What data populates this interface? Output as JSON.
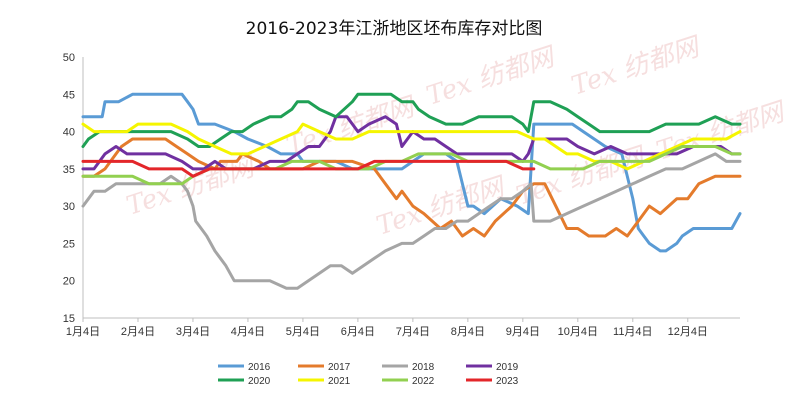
{
  "chart_data": {
    "type": "line",
    "title": "2016-2023年江浙地区坯布库存对比图",
    "categories": [
      "1月4日",
      "2月4日",
      "3月4日",
      "4月4日",
      "5月4日",
      "6月4日",
      "7月4日",
      "8月4日",
      "9月4日",
      "10月4日",
      "11月4日",
      "12月4日"
    ],
    "ylim": [
      15,
      50
    ],
    "yticks": [
      15,
      20,
      25,
      30,
      35,
      40,
      45,
      50
    ],
    "grid": false,
    "legend_position": "bottom",
    "watermark": "Tex 纺都网",
    "x_domain": [
      1,
      12.95
    ],
    "series": [
      {
        "name": "2016",
        "color": "#5a9bd5",
        "x": [
          1,
          1.1,
          1.35,
          1.4,
          1.65,
          1.9,
          2.1,
          2.4,
          2.8,
          2.9,
          3.0,
          3.1,
          3.4,
          3.75,
          4.0,
          4.35,
          4.6,
          4.9,
          5.0,
          5.3,
          5.6,
          5.9,
          6.2,
          6.6,
          6.8,
          7.0,
          7.2,
          7.4,
          7.6,
          7.8,
          7.9,
          8.0,
          8.1,
          8.3,
          8.6,
          8.9,
          9.1,
          9.2,
          9.3,
          9.6,
          9.9,
          10.1,
          10.5,
          10.8,
          10.9,
          11.0,
          11.1,
          11.2,
          11.3,
          11.5,
          11.6,
          11.8,
          11.9,
          12.1,
          12.3,
          12.6,
          12.8,
          12.95
        ],
        "y": [
          42,
          42,
          42,
          44,
          44,
          45,
          45,
          45,
          45,
          44,
          43,
          41,
          41,
          40,
          39,
          38,
          37,
          37,
          36,
          36,
          36,
          35,
          35,
          35,
          35,
          36,
          37,
          37,
          37,
          36,
          33,
          30,
          30,
          29,
          31,
          30,
          29,
          41,
          41,
          41,
          41,
          40,
          38,
          37,
          34,
          31,
          27,
          26,
          25,
          24,
          24,
          25,
          26,
          27,
          27,
          27,
          27,
          29
        ]
      },
      {
        "name": "2017",
        "color": "#e47b2c",
        "x": [
          1,
          1.2,
          1.4,
          1.6,
          1.7,
          1.9,
          2.2,
          2.5,
          2.7,
          2.9,
          3.1,
          3.4,
          3.5,
          3.8,
          3.9,
          4.2,
          4.4,
          4.7,
          5.0,
          5.3,
          5.6,
          5.9,
          6.3,
          6.5,
          6.7,
          6.8,
          7.0,
          7.2,
          7.5,
          7.7,
          7.9,
          8.1,
          8.3,
          8.5,
          8.8,
          9.0,
          9.2,
          9.4,
          9.6,
          9.8,
          10.0,
          10.2,
          10.5,
          10.7,
          10.9,
          11.1,
          11.3,
          11.5,
          11.8,
          12.0,
          12.2,
          12.5,
          12.7,
          12.95
        ],
        "y": [
          34,
          34,
          35,
          37,
          38,
          39,
          39,
          39,
          38,
          37,
          36,
          35,
          36,
          36,
          37,
          36,
          35,
          35,
          35,
          36,
          36,
          36,
          35,
          33,
          31,
          32,
          30,
          29,
          27,
          28,
          26,
          27,
          26,
          28,
          30,
          32,
          33,
          33,
          30,
          27,
          27,
          26,
          26,
          27,
          26,
          28,
          30,
          29,
          31,
          31,
          33,
          34,
          34,
          34
        ]
      },
      {
        "name": "2018",
        "color": "#a5a5a5",
        "x": [
          1,
          1.1,
          1.2,
          1.4,
          1.6,
          1.8,
          2.0,
          2.2,
          2.4,
          2.6,
          2.8,
          2.9,
          3.0,
          3.05,
          3.15,
          3.25,
          3.4,
          3.5,
          3.6,
          3.75,
          3.9,
          4.1,
          4.4,
          4.7,
          4.9,
          5.1,
          5.3,
          5.5,
          5.7,
          5.9,
          6.1,
          6.3,
          6.5,
          6.8,
          7.0,
          7.2,
          7.4,
          7.6,
          7.8,
          8.0,
          8.2,
          8.4,
          8.6,
          8.8,
          9.0,
          9.15,
          9.2,
          9.5,
          9.8,
          10.1,
          10.4,
          10.7,
          11.0,
          11.3,
          11.6,
          11.9,
          12.2,
          12.5,
          12.7,
          12.95
        ],
        "y": [
          30,
          31,
          32,
          32,
          33,
          33,
          33,
          33,
          33,
          34,
          33,
          32,
          30,
          28,
          27,
          26,
          24,
          23,
          22,
          20,
          20,
          20,
          20,
          19,
          19,
          20,
          21,
          22,
          22,
          21,
          22,
          23,
          24,
          25,
          25,
          26,
          27,
          27,
          28,
          28,
          29,
          30,
          31,
          31,
          32,
          33,
          28,
          28,
          29,
          30,
          31,
          32,
          33,
          34,
          35,
          35,
          36,
          37,
          36,
          36
        ]
      },
      {
        "name": "2019",
        "color": "#7030a0",
        "x": [
          1,
          1.2,
          1.4,
          1.6,
          1.8,
          2.0,
          2.2,
          2.5,
          2.8,
          3.0,
          3.2,
          3.4,
          3.6,
          3.9,
          4.1,
          4.4,
          4.7,
          4.9,
          5.1,
          5.3,
          5.5,
          5.6,
          5.8,
          5.9,
          6.0,
          6.2,
          6.5,
          6.7,
          6.8,
          7.0,
          7.2,
          7.4,
          7.6,
          7.8,
          8.0,
          8.2,
          8.5,
          8.8,
          9.0,
          9.1,
          9.2,
          9.4,
          9.6,
          9.8,
          10.0,
          10.3,
          10.6,
          10.9,
          11.1,
          11.3,
          11.5,
          11.8,
          12.1,
          12.4,
          12.6,
          12.8,
          12.95
        ],
        "y": [
          35,
          35,
          37,
          38,
          37,
          37,
          37,
          37,
          36,
          35,
          35,
          36,
          35,
          35,
          35,
          36,
          36,
          37,
          38,
          38,
          40,
          42,
          42,
          41,
          40,
          41,
          42,
          41,
          38,
          40,
          39,
          39,
          38,
          37,
          37,
          37,
          37,
          37,
          36,
          37,
          39,
          39,
          39,
          39,
          38,
          37,
          38,
          37,
          37,
          37,
          37,
          37,
          38,
          38,
          38,
          37,
          37
        ]
      },
      {
        "name": "2020",
        "color": "#1fa055",
        "x": [
          1,
          1.1,
          1.3,
          1.5,
          1.8,
          2.0,
          2.3,
          2.6,
          2.9,
          3.1,
          3.3,
          3.5,
          3.7,
          3.9,
          4.1,
          4.4,
          4.6,
          4.8,
          4.9,
          5.1,
          5.3,
          5.6,
          5.9,
          6.0,
          6.2,
          6.4,
          6.6,
          6.8,
          7.0,
          7.1,
          7.3,
          7.6,
          7.9,
          8.2,
          8.5,
          8.8,
          9.0,
          9.1,
          9.2,
          9.5,
          9.8,
          10.0,
          10.2,
          10.4,
          10.6,
          10.8,
          11.0,
          11.3,
          11.6,
          11.9,
          12.2,
          12.5,
          12.8,
          12.95
        ],
        "y": [
          38,
          39,
          40,
          40,
          40,
          40,
          40,
          40,
          39,
          38,
          38,
          39,
          40,
          40,
          41,
          42,
          42,
          43,
          44,
          44,
          43,
          42,
          44,
          45,
          45,
          45,
          45,
          44,
          44,
          43,
          42,
          41,
          41,
          42,
          42,
          42,
          41,
          40,
          44,
          44,
          43,
          42,
          41,
          40,
          40,
          40,
          40,
          40,
          41,
          41,
          41,
          42,
          41,
          41
        ]
      },
      {
        "name": "2021",
        "color": "#f5f500",
        "x": [
          1,
          1.2,
          1.5,
          1.8,
          2.0,
          2.3,
          2.6,
          2.9,
          3.1,
          3.4,
          3.7,
          4.0,
          4.3,
          4.6,
          4.9,
          5.0,
          5.3,
          5.6,
          5.9,
          6.2,
          6.5,
          6.8,
          7.1,
          7.4,
          7.7,
          8.0,
          8.3,
          8.6,
          8.9,
          9.2,
          9.4,
          9.6,
          9.8,
          10.0,
          10.3,
          10.6,
          10.9,
          11.2,
          11.5,
          11.8,
          12.1,
          12.4,
          12.7,
          12.95
        ],
        "y": [
          41,
          40,
          40,
          40,
          41,
          41,
          41,
          40,
          39,
          38,
          37,
          37,
          38,
          39,
          40,
          41,
          40,
          39,
          39,
          40,
          40,
          40,
          40,
          40,
          40,
          40,
          40,
          40,
          40,
          39,
          39,
          38,
          37,
          37,
          36,
          36,
          35,
          36,
          37,
          38,
          39,
          39,
          39,
          40
        ]
      },
      {
        "name": "2022",
        "color": "#92d050",
        "x": [
          1,
          1.3,
          1.6,
          1.9,
          2.2,
          2.5,
          2.8,
          3.0,
          3.3,
          3.6,
          3.9,
          4.2,
          4.5,
          4.8,
          5.0,
          5.3,
          5.6,
          5.9,
          6.2,
          6.5,
          6.8,
          7.1,
          7.4,
          7.7,
          8.0,
          8.3,
          8.6,
          8.9,
          9.2,
          9.5,
          9.8,
          10.1,
          10.4,
          10.7,
          11.0,
          11.3,
          11.6,
          11.9,
          12.2,
          12.5,
          12.8,
          12.95
        ],
        "y": [
          34,
          34,
          34,
          34,
          33,
          33,
          33,
          34,
          35,
          35,
          35,
          35,
          35,
          36,
          36,
          36,
          35,
          35,
          35,
          36,
          36,
          37,
          37,
          37,
          36,
          36,
          36,
          36,
          36,
          35,
          35,
          35,
          36,
          36,
          36,
          36,
          37,
          38,
          38,
          38,
          37,
          37
        ]
      },
      {
        "name": "2023",
        "color": "#e3262a",
        "x": [
          1,
          1.3,
          1.6,
          1.9,
          2.2,
          2.5,
          2.8,
          3.0,
          3.3,
          3.6,
          3.9,
          4.2,
          4.5,
          4.8,
          5.1,
          5.4,
          5.7,
          6.0,
          6.3,
          6.6,
          6.9,
          7.2,
          7.5,
          7.8,
          8.1,
          8.4,
          8.7,
          9.0,
          9.2
        ],
        "y": [
          36,
          36,
          36,
          36,
          35,
          35,
          35,
          34,
          35,
          35,
          35,
          35,
          35,
          35,
          35,
          35,
          35,
          35,
          36,
          36,
          36,
          36,
          36,
          36,
          36,
          36,
          36,
          35,
          35
        ]
      }
    ]
  }
}
